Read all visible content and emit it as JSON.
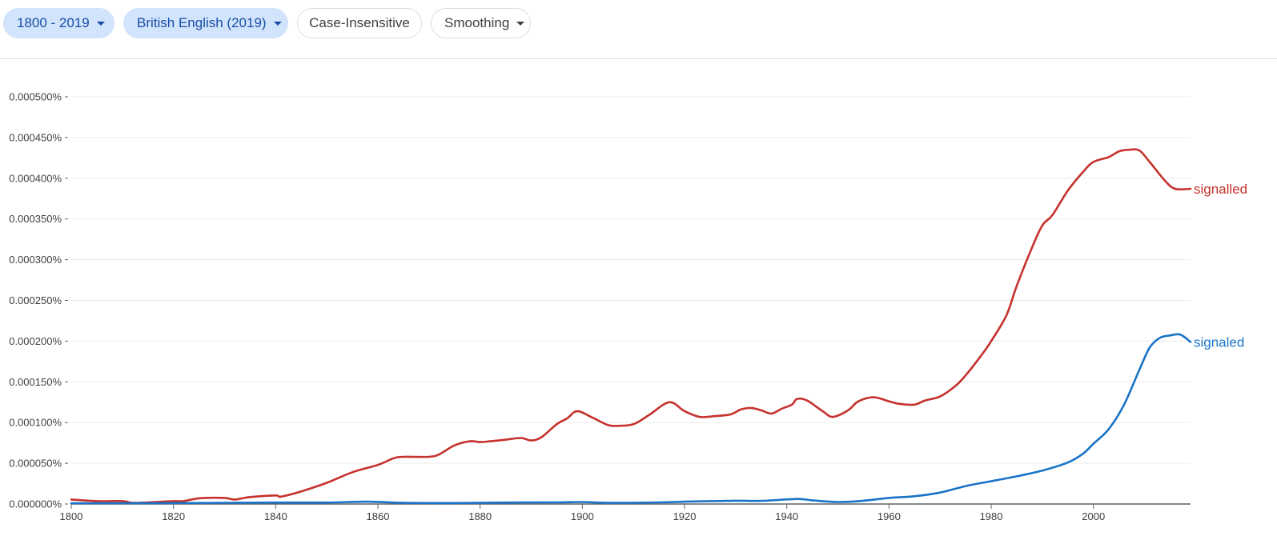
{
  "toolbar": {
    "range_label": "1800 - 2019",
    "corpus_label": "British English (2019)",
    "case_label": "Case-Insensitive",
    "smoothing_label": "Smoothing"
  },
  "colors": {
    "accent_bg": "#d2e3fc",
    "accent_text": "#174ea6"
  },
  "chart_data": {
    "type": "line",
    "xlim": [
      1800,
      2019
    ],
    "ylim": [
      0,
      0.0005
    ],
    "x_ticks": [
      "1800",
      "1820",
      "1840",
      "1860",
      "1880",
      "1900",
      "1920",
      "1940",
      "1960",
      "1980",
      "2000"
    ],
    "y_ticks": [
      "0.000000%",
      "0.000050%",
      "0.000100%",
      "0.000150%",
      "0.000200%",
      "0.000250%",
      "0.000300%",
      "0.000350%",
      "0.000400%",
      "0.000450%",
      "0.000500%"
    ],
    "grid": true,
    "legend": "line-end labels",
    "series": [
      {
        "name": "signalled",
        "color": "#c5312c",
        "points": [
          [
            1800,
            5.5e-06
          ],
          [
            1805,
            3.5e-06
          ],
          [
            1810,
            3.5e-06
          ],
          [
            1812,
            1.5e-06
          ],
          [
            1815,
            2e-06
          ],
          [
            1820,
            3.5e-06
          ],
          [
            1822,
            3.5e-06
          ],
          [
            1825,
            7e-06
          ],
          [
            1830,
            7.5e-06
          ],
          [
            1832,
            5.5e-06
          ],
          [
            1835,
            8.5e-06
          ],
          [
            1840,
            1.05e-05
          ],
          [
            1841,
            9e-06
          ],
          [
            1845,
            1.55e-05
          ],
          [
            1850,
            2.6e-05
          ],
          [
            1855,
            3.9e-05
          ],
          [
            1860,
            4.8e-05
          ],
          [
            1863,
            5.6e-05
          ],
          [
            1865,
            5.8e-05
          ],
          [
            1870,
            5.8e-05
          ],
          [
            1872,
            6.1e-05
          ],
          [
            1875,
            7.2e-05
          ],
          [
            1878,
            7.7e-05
          ],
          [
            1880,
            7.6e-05
          ],
          [
            1882,
            7.7e-05
          ],
          [
            1885,
            7.9e-05
          ],
          [
            1888,
            8.1e-05
          ],
          [
            1890,
            7.8e-05
          ],
          [
            1892,
            8.2e-05
          ],
          [
            1895,
            9.8e-05
          ],
          [
            1897,
            0.000105
          ],
          [
            1899,
            0.000114
          ],
          [
            1902,
            0.000106
          ],
          [
            1905,
            9.7e-05
          ],
          [
            1907,
            9.6e-05
          ],
          [
            1910,
            9.8e-05
          ],
          [
            1913,
            0.000109
          ],
          [
            1917,
            0.000125
          ],
          [
            1920,
            0.000114
          ],
          [
            1923,
            0.000107
          ],
          [
            1926,
            0.000108
          ],
          [
            1929,
            0.00011
          ],
          [
            1931,
            0.000116
          ],
          [
            1933,
            0.000118
          ],
          [
            1935,
            0.000115
          ],
          [
            1937,
            0.000111
          ],
          [
            1939,
            0.000117
          ],
          [
            1941,
            0.000122
          ],
          [
            1942,
            0.000129
          ],
          [
            1944,
            0.000127
          ],
          [
            1947,
            0.000114
          ],
          [
            1949,
            0.000107
          ],
          [
            1952,
            0.000115
          ],
          [
            1954,
            0.000126
          ],
          [
            1957,
            0.000131
          ],
          [
            1960,
            0.000126
          ],
          [
            1962,
            0.000123
          ],
          [
            1965,
            0.000122
          ],
          [
            1967,
            0.000127
          ],
          [
            1970,
            0.000132
          ],
          [
            1973,
            0.000145
          ],
          [
            1975,
            0.000158
          ],
          [
            1978,
            0.000182
          ],
          [
            1980,
            0.0002
          ],
          [
            1983,
            0.000232
          ],
          [
            1985,
            0.000268
          ],
          [
            1988,
            0.000315
          ],
          [
            1990,
            0.000342
          ],
          [
            1992,
            0.000355
          ],
          [
            1995,
            0.000385
          ],
          [
            1998,
            0.000408
          ],
          [
            2000,
            0.00042
          ],
          [
            2003,
            0.000426
          ],
          [
            2005,
            0.000433
          ],
          [
            2007,
            0.000435
          ],
          [
            2009,
            0.000434
          ],
          [
            2011,
            0.00042
          ],
          [
            2014,
            0.000397
          ],
          [
            2016,
            0.000387
          ],
          [
            2019,
            0.000387
          ]
        ]
      },
      {
        "name": "signaled",
        "color": "#1a73c8",
        "points": [
          [
            1800,
            1e-06
          ],
          [
            1810,
            1e-06
          ],
          [
            1820,
            1.2e-06
          ],
          [
            1830,
            1.5e-06
          ],
          [
            1840,
            1.8e-06
          ],
          [
            1850,
            1.8e-06
          ],
          [
            1858,
            2.8e-06
          ],
          [
            1865,
            1.4e-06
          ],
          [
            1875,
            1.2e-06
          ],
          [
            1885,
            1.8e-06
          ],
          [
            1895,
            2e-06
          ],
          [
            1900,
            2.5e-06
          ],
          [
            1905,
            1.5e-06
          ],
          [
            1915,
            2e-06
          ],
          [
            1920,
            2.8e-06
          ],
          [
            1930,
            4e-06
          ],
          [
            1935,
            3.8e-06
          ],
          [
            1942,
            6.2e-06
          ],
          [
            1945,
            4.5e-06
          ],
          [
            1950,
            2.5e-06
          ],
          [
            1955,
            4e-06
          ],
          [
            1960,
            7.5e-06
          ],
          [
            1965,
            9.5e-06
          ],
          [
            1970,
            1.4e-05
          ],
          [
            1975,
            2.2e-05
          ],
          [
            1980,
            2.8e-05
          ],
          [
            1985,
            3.4e-05
          ],
          [
            1990,
            4.1e-05
          ],
          [
            1995,
            5.1e-05
          ],
          [
            1998,
            6.2e-05
          ],
          [
            2000,
            7.4e-05
          ],
          [
            2003,
            9.2e-05
          ],
          [
            2006,
            0.000122
          ],
          [
            2009,
            0.000165
          ],
          [
            2011,
            0.000192
          ],
          [
            2013,
            0.000204
          ],
          [
            2015,
            0.000207
          ],
          [
            2017,
            0.000208
          ],
          [
            2019,
            0.000199
          ]
        ]
      }
    ]
  }
}
